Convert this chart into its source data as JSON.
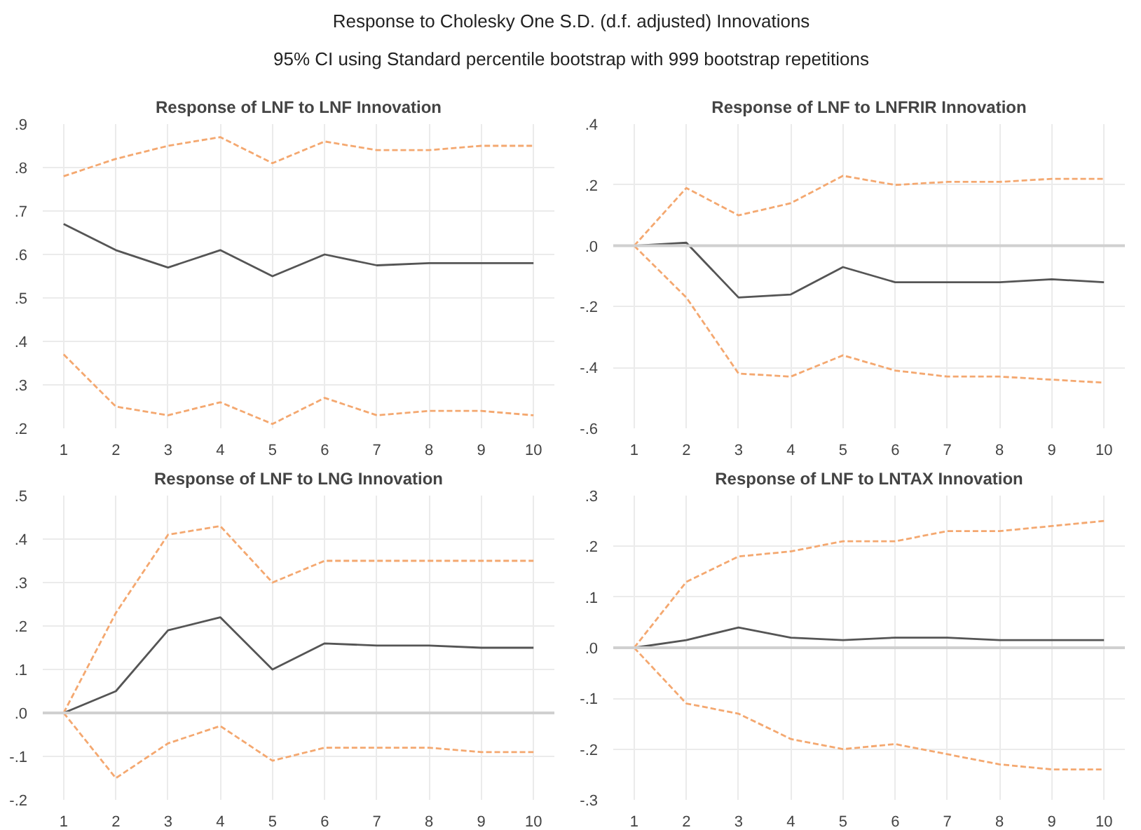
{
  "chart_data": [
    {
      "type": "other",
      "title": "Response to Cholesky One S.D. (d.f. adjusted) Innovations",
      "subtitle": "95% CI using Standard percentile bootstrap with 999 bootstrap repetitions"
    },
    {
      "type": "line",
      "title": "Response of LNF to LNF Innovation",
      "x": [
        1,
        2,
        3,
        4,
        5,
        6,
        7,
        8,
        9,
        10
      ],
      "xlim": [
        0.6,
        10.4
      ],
      "xticks": [
        1,
        2,
        3,
        4,
        5,
        6,
        7,
        8,
        9,
        10
      ],
      "ylim": [
        0.2,
        0.9
      ],
      "yticks": [
        {
          "value": 0.2,
          "label": ".2"
        },
        {
          "value": 0.3,
          "label": ".3"
        },
        {
          "value": 0.4,
          "label": ".4"
        },
        {
          "value": 0.5,
          "label": ".5"
        },
        {
          "value": 0.6,
          "label": ".6"
        },
        {
          "value": 0.7,
          "label": ".7"
        },
        {
          "value": 0.8,
          "label": ".8"
        },
        {
          "value": 0.9,
          "label": ".9"
        }
      ],
      "grid": true,
      "series": [
        {
          "color": "#f4a870",
          "line_style": "dashed",
          "values": [
            0.78,
            0.82,
            0.85,
            0.87,
            0.81,
            0.86,
            0.84,
            0.84,
            0.85,
            0.85
          ]
        },
        {
          "color": "#555555",
          "line_style": "solid",
          "values": [
            0.67,
            0.61,
            0.57,
            0.61,
            0.55,
            0.6,
            0.575,
            0.58,
            0.58,
            0.58
          ]
        },
        {
          "color": "#f4a870",
          "line_style": "dashed",
          "values": [
            0.37,
            0.25,
            0.23,
            0.26,
            0.21,
            0.27,
            0.23,
            0.24,
            0.24,
            0.23
          ]
        }
      ]
    },
    {
      "type": "line",
      "title": "Response of LNF to LNFRIR Innovation",
      "x": [
        1,
        2,
        3,
        4,
        5,
        6,
        7,
        8,
        9,
        10
      ],
      "xlim": [
        0.6,
        10.4
      ],
      "xticks": [
        1,
        2,
        3,
        4,
        5,
        6,
        7,
        8,
        9,
        10
      ],
      "ylim": [
        -0.6,
        0.4
      ],
      "yticks": [
        {
          "value": -0.6,
          "label": "-.6"
        },
        {
          "value": -0.4,
          "label": "-.4"
        },
        {
          "value": -0.2,
          "label": "-.2"
        },
        {
          "value": 0,
          "label": ".0"
        },
        {
          "value": 0.2,
          "label": ".2"
        },
        {
          "value": 0.4,
          "label": ".4"
        }
      ],
      "grid": true,
      "ref_lines": [
        {
          "axis": "y",
          "value": 0,
          "color": "#d0d0d0"
        }
      ],
      "series": [
        {
          "color": "#f4a870",
          "line_style": "dashed",
          "values": [
            0,
            0.19,
            0.1,
            0.14,
            0.23,
            0.2,
            0.21,
            0.21,
            0.22,
            0.22
          ]
        },
        {
          "color": "#555555",
          "line_style": "solid",
          "values": [
            0,
            0.01,
            -0.17,
            -0.16,
            -0.07,
            -0.12,
            -0.12,
            -0.12,
            -0.11,
            -0.12
          ]
        },
        {
          "color": "#f4a870",
          "line_style": "dashed",
          "values": [
            0,
            -0.17,
            -0.42,
            -0.43,
            -0.36,
            -0.41,
            -0.43,
            -0.43,
            -0.44,
            -0.45
          ]
        }
      ]
    },
    {
      "type": "line",
      "title": "Response of LNF to LNG Innovation",
      "x": [
        1,
        2,
        3,
        4,
        5,
        6,
        7,
        8,
        9,
        10
      ],
      "xlim": [
        0.6,
        10.4
      ],
      "xticks": [
        1,
        2,
        3,
        4,
        5,
        6,
        7,
        8,
        9,
        10
      ],
      "ylim": [
        -0.2,
        0.5
      ],
      "yticks": [
        {
          "value": -0.2,
          "label": "-.2"
        },
        {
          "value": -0.1,
          "label": "-.1"
        },
        {
          "value": 0,
          "label": ".0"
        },
        {
          "value": 0.1,
          "label": ".1"
        },
        {
          "value": 0.2,
          "label": ".2"
        },
        {
          "value": 0.3,
          "label": ".3"
        },
        {
          "value": 0.4,
          "label": ".4"
        },
        {
          "value": 0.5,
          "label": ".5"
        }
      ],
      "grid": true,
      "ref_lines": [
        {
          "axis": "y",
          "value": 0,
          "color": "#d0d0d0"
        }
      ],
      "series": [
        {
          "color": "#f4a870",
          "line_style": "dashed",
          "values": [
            0,
            0.23,
            0.41,
            0.43,
            0.3,
            0.35,
            0.35,
            0.35,
            0.35,
            0.35
          ]
        },
        {
          "color": "#555555",
          "line_style": "solid",
          "values": [
            0,
            0.05,
            0.19,
            0.22,
            0.1,
            0.16,
            0.155,
            0.155,
            0.15,
            0.15
          ]
        },
        {
          "color": "#f4a870",
          "line_style": "dashed",
          "values": [
            0,
            -0.15,
            -0.07,
            -0.03,
            -0.11,
            -0.08,
            -0.08,
            -0.08,
            -0.09,
            -0.09
          ]
        }
      ]
    },
    {
      "type": "line",
      "title": "Response of LNF to LNTAX Innovation",
      "x": [
        1,
        2,
        3,
        4,
        5,
        6,
        7,
        8,
        9,
        10
      ],
      "xlim": [
        0.6,
        10.4
      ],
      "xticks": [
        1,
        2,
        3,
        4,
        5,
        6,
        7,
        8,
        9,
        10
      ],
      "ylim": [
        -0.3,
        0.3
      ],
      "yticks": [
        {
          "value": -0.3,
          "label": "-.3"
        },
        {
          "value": -0.2,
          "label": "-.2"
        },
        {
          "value": -0.1,
          "label": "-.1"
        },
        {
          "value": 0,
          "label": ".0"
        },
        {
          "value": 0.1,
          "label": ".1"
        },
        {
          "value": 0.2,
          "label": ".2"
        },
        {
          "value": 0.3,
          "label": ".3"
        }
      ],
      "grid": true,
      "ref_lines": [
        {
          "axis": "y",
          "value": 0,
          "color": "#d0d0d0"
        }
      ],
      "series": [
        {
          "color": "#f4a870",
          "line_style": "dashed",
          "values": [
            0,
            0.13,
            0.18,
            0.19,
            0.21,
            0.21,
            0.23,
            0.23,
            0.24,
            0.25
          ]
        },
        {
          "color": "#555555",
          "line_style": "solid",
          "values": [
            0,
            0.015,
            0.04,
            0.02,
            0.015,
            0.02,
            0.02,
            0.015,
            0.015,
            0.015
          ]
        },
        {
          "color": "#f4a870",
          "line_style": "dashed",
          "values": [
            0,
            -0.11,
            -0.13,
            -0.18,
            -0.2,
            -0.19,
            -0.21,
            -0.23,
            -0.24,
            -0.24
          ]
        }
      ]
    }
  ]
}
